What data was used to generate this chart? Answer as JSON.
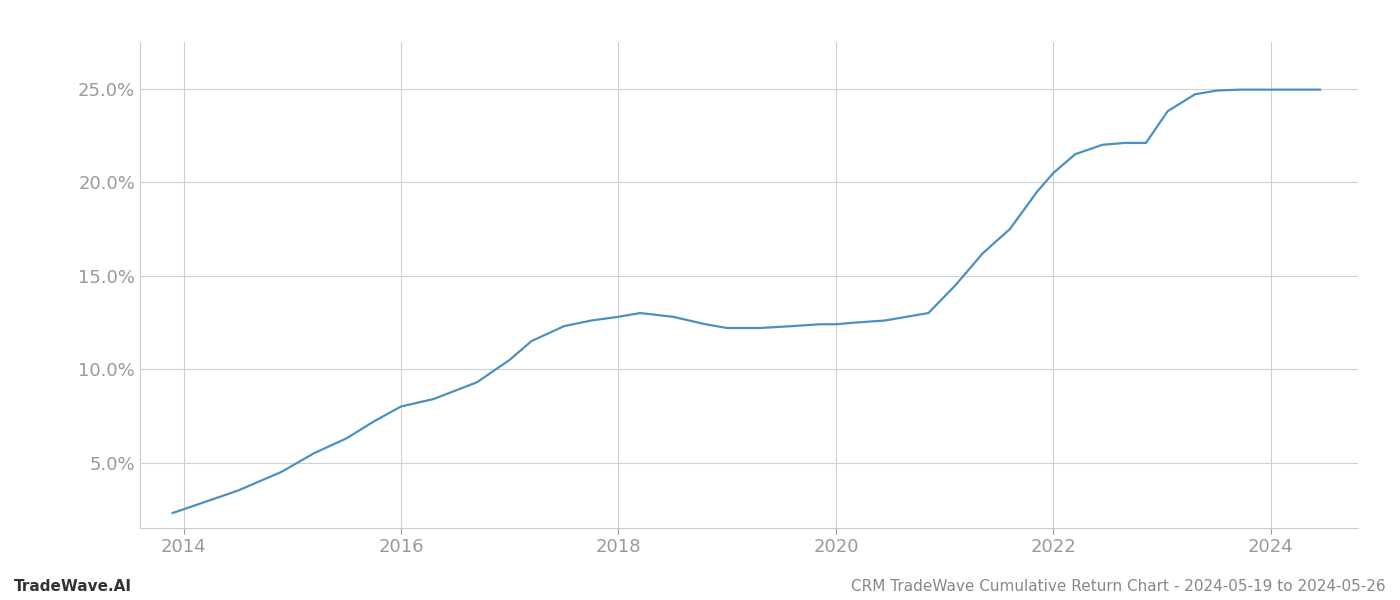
{
  "title": "CRM TradeWave Cumulative Return Chart - 2024-05-19 to 2024-05-26",
  "watermark": "TradeWave.AI",
  "line_color": "#4a90c4",
  "background_color": "#ffffff",
  "grid_color": "#d0d0d0",
  "x_data": [
    2013.9,
    2014.1,
    2014.5,
    2014.9,
    2015.2,
    2015.5,
    2015.75,
    2016.0,
    2016.3,
    2016.7,
    2017.0,
    2017.2,
    2017.5,
    2017.75,
    2018.0,
    2018.2,
    2018.5,
    2018.8,
    2019.0,
    2019.3,
    2019.6,
    2019.85,
    2020.0,
    2020.2,
    2020.45,
    2020.65,
    2020.85,
    2021.1,
    2021.35,
    2021.6,
    2021.85,
    2022.0,
    2022.2,
    2022.45,
    2022.65,
    2022.85,
    2023.05,
    2023.3,
    2023.5,
    2023.7,
    2023.85,
    2024.0,
    2024.2,
    2024.45
  ],
  "y_data": [
    2.3,
    2.7,
    3.5,
    4.5,
    5.5,
    6.3,
    7.2,
    8.0,
    8.4,
    9.3,
    10.5,
    11.5,
    12.3,
    12.6,
    12.8,
    13.0,
    12.8,
    12.4,
    12.2,
    12.2,
    12.3,
    12.4,
    12.4,
    12.5,
    12.6,
    12.8,
    13.0,
    14.5,
    16.2,
    17.5,
    19.5,
    20.5,
    21.5,
    22.0,
    22.1,
    22.1,
    23.8,
    24.7,
    24.9,
    24.95,
    24.95,
    24.95,
    24.95,
    24.95
  ],
  "ylim": [
    1.5,
    27.5
  ],
  "xlim": [
    2013.6,
    2024.8
  ],
  "yticks": [
    5.0,
    10.0,
    15.0,
    20.0,
    25.0
  ],
  "xticks": [
    2014,
    2016,
    2018,
    2020,
    2022,
    2024
  ],
  "tick_label_color": "#999999",
  "tick_label_fontsize": 13,
  "line_width": 1.6,
  "footer_left": "TradeWave.AI",
  "footer_right": "CRM TradeWave Cumulative Return Chart - 2024-05-19 to 2024-05-26",
  "footer_fontsize": 11,
  "footer_color": "#888888"
}
